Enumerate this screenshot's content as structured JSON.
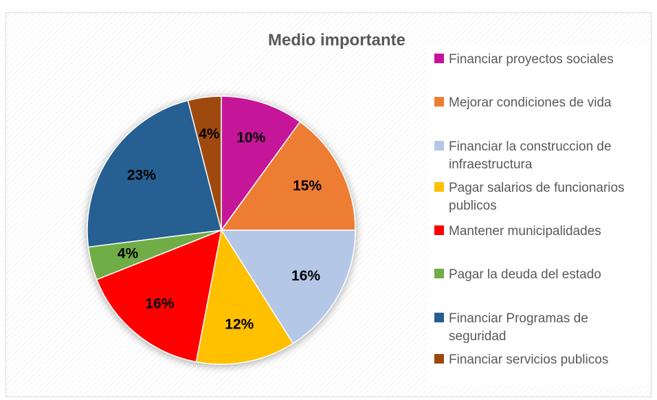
{
  "chart_data": {
    "type": "pie",
    "title": "Medio importante",
    "categories": [
      "Financiar proyectos sociales",
      "Mejorar condiciones de vida",
      "Financiar la construccion de infraestructura",
      "Pagar salarios de funcionarios publicos",
      "Mantener municipalidades",
      "Pagar la deuda del estado",
      "Financiar Programas de seguridad",
      "Financiar servicios publicos"
    ],
    "values": [
      10,
      15,
      16,
      12,
      16,
      4,
      23,
      4
    ],
    "value_labels": [
      "10%",
      "15%",
      "16%",
      "12%",
      "16%",
      "4%",
      "23%",
      "4%"
    ],
    "colors": [
      "#c5139a",
      "#ed7d31",
      "#b4c7e7",
      "#ffc000",
      "#ff0000",
      "#70ad47",
      "#255e91",
      "#9e480e"
    ],
    "legend": "right"
  }
}
